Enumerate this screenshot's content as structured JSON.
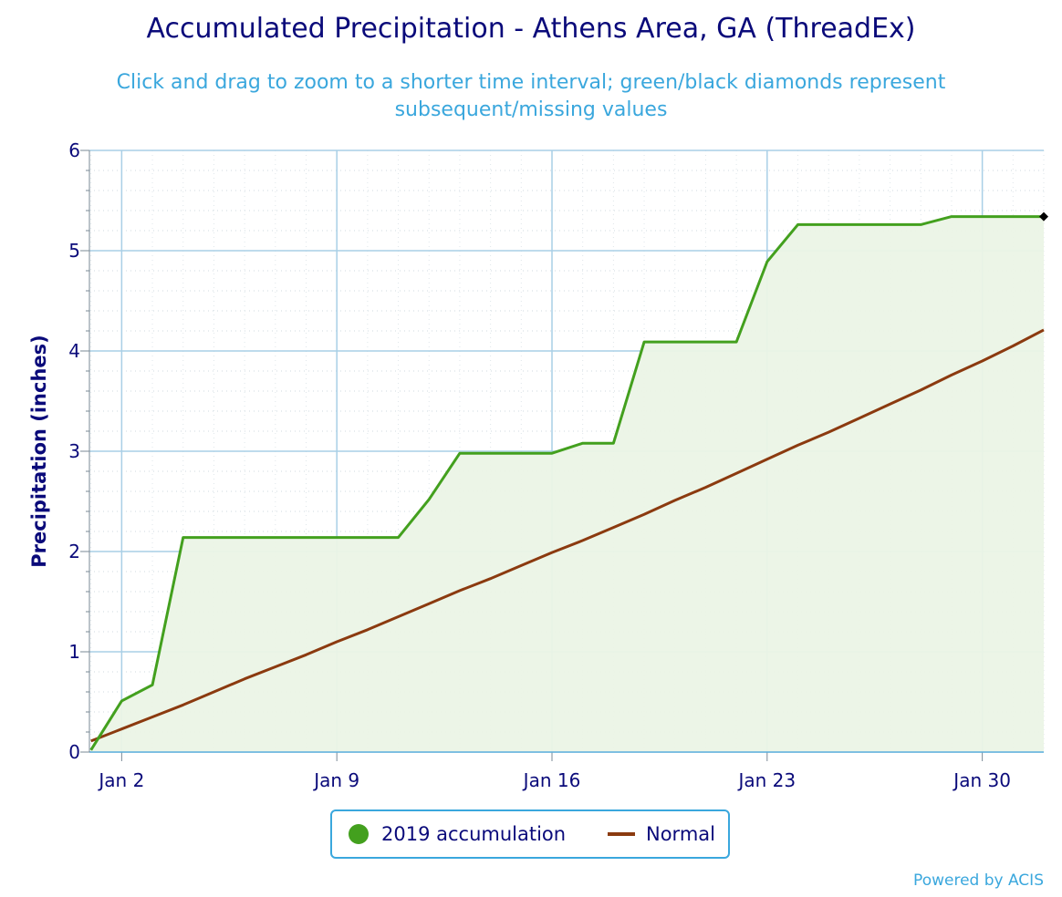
{
  "title": "Accumulated Precipitation - Athens Area, GA (ThreadEx)",
  "subtitle": "Click and drag to zoom to a shorter time interval; green/black diamonds represent subsequent/missing values",
  "credits": "Powered by ACIS",
  "colors": {
    "accumulation": "#43a01e",
    "normal": "#8b3a0f",
    "fill": "#ebf4e6",
    "grid": "#a9cfe6",
    "text": "#0a0a7a",
    "accent": "#3aa7dd"
  },
  "chart_data": {
    "type": "line",
    "title": "Accumulated Precipitation - Athens Area, GA (ThreadEx)",
    "ylabel": "Precipitation (inches)",
    "xlabel": "",
    "x_range_days": [
      1,
      32
    ],
    "ylim": [
      0,
      6
    ],
    "y_ticks": [
      "0",
      "1",
      "2",
      "3",
      "4",
      "5",
      "6"
    ],
    "x_ticks": [
      {
        "day": 2,
        "label": "Jan 2"
      },
      {
        "day": 9,
        "label": "Jan 9"
      },
      {
        "day": 16,
        "label": "Jan 16"
      },
      {
        "day": 23,
        "label": "Jan 23"
      },
      {
        "day": 30,
        "label": "Jan 30"
      }
    ],
    "grid": true,
    "legend_position": "bottom-center",
    "series": [
      {
        "name": "2019 accumulation",
        "type": "area-line",
        "x": [
          1,
          2,
          3,
          4,
          5,
          6,
          7,
          8,
          9,
          10,
          11,
          12,
          13,
          14,
          15,
          16,
          17,
          18,
          19,
          20,
          21,
          22,
          23,
          24,
          25,
          26,
          27,
          28,
          29,
          30,
          31,
          32
        ],
        "values": [
          0.02,
          0.51,
          0.67,
          2.14,
          2.14,
          2.14,
          2.14,
          2.14,
          2.14,
          2.14,
          2.14,
          2.52,
          2.98,
          2.98,
          2.98,
          2.98,
          3.08,
          3.08,
          4.09,
          4.09,
          4.09,
          4.09,
          4.89,
          5.26,
          5.26,
          5.26,
          5.26,
          5.26,
          5.34,
          5.34,
          5.34,
          5.34
        ]
      },
      {
        "name": "Normal",
        "type": "line",
        "x": [
          1,
          2,
          3,
          4,
          5,
          6,
          7,
          8,
          9,
          10,
          11,
          12,
          13,
          14,
          15,
          16,
          17,
          18,
          19,
          20,
          21,
          22,
          23,
          24,
          25,
          26,
          27,
          28,
          29,
          30,
          31,
          32
        ],
        "values": [
          0.11,
          0.23,
          0.35,
          0.47,
          0.6,
          0.73,
          0.85,
          0.97,
          1.1,
          1.22,
          1.35,
          1.48,
          1.61,
          1.73,
          1.86,
          1.99,
          2.11,
          2.24,
          2.37,
          2.51,
          2.64,
          2.78,
          2.92,
          3.06,
          3.19,
          3.33,
          3.47,
          3.61,
          3.76,
          3.9,
          4.05,
          4.21
        ]
      }
    ],
    "markers": [
      {
        "series": "2019 accumulation",
        "day": 32,
        "value": 5.34,
        "shape": "diamond",
        "color": "#000000"
      }
    ]
  },
  "legend": {
    "items": [
      {
        "label": "2019 accumulation",
        "symbol": "circle"
      },
      {
        "label": "Normal",
        "symbol": "line"
      }
    ]
  }
}
